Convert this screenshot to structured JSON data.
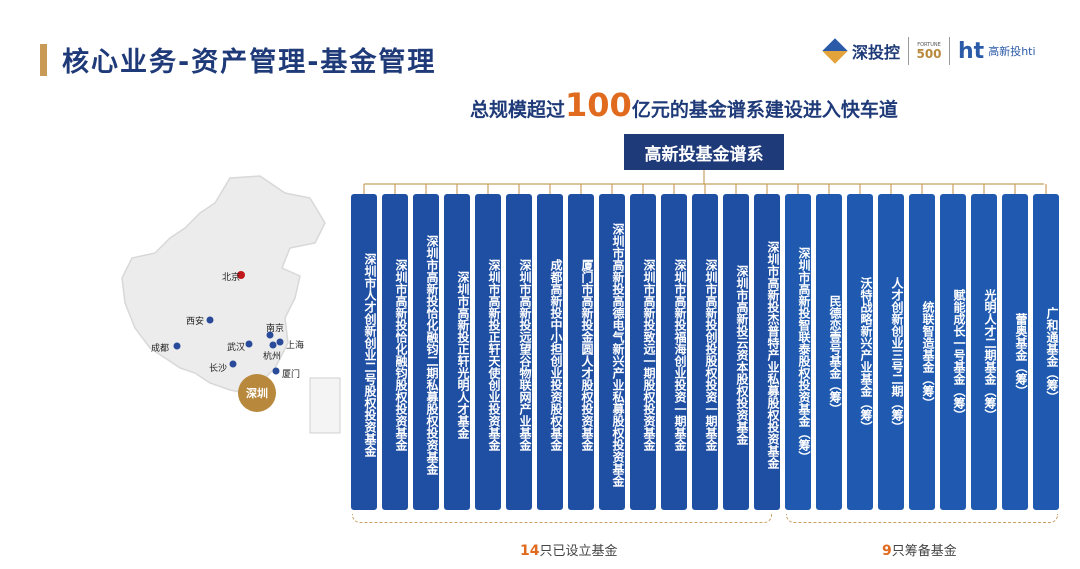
{
  "header": {
    "title": "核心业务-资产管理-基金管理",
    "logo_name": "深投控",
    "logo_500_small": "FORTUNE",
    "logo_500_big": "500",
    "logo_ht_mark": "ht",
    "logo_ht_name": "高新投hti",
    "logo_icon": "cube-logo-icon",
    "accent_color": "#c89a55",
    "brand_color": "#1f3a78"
  },
  "subtitle": {
    "prefix": "总规模超过",
    "number": "100",
    "suffix": "亿元的基金谱系建设进入快车道",
    "highlight_color": "#e06a1e"
  },
  "tree_header": "高新投基金谱系",
  "map": {
    "cities": [
      {
        "name": "北京",
        "highlight": true
      },
      {
        "name": "西安",
        "highlight": false
      },
      {
        "name": "成都",
        "highlight": false
      },
      {
        "name": "武汉",
        "highlight": false
      },
      {
        "name": "南京",
        "highlight": false
      },
      {
        "name": "上海",
        "highlight": false
      },
      {
        "name": "杭州",
        "highlight": false
      },
      {
        "name": "长沙",
        "highlight": false
      },
      {
        "name": "厦门",
        "highlight": false
      },
      {
        "name": "深圳",
        "highlight": true
      }
    ]
  },
  "funds": [
    {
      "name": "深圳市人才创新创业二号股权投资基金",
      "status": "established"
    },
    {
      "name": "深圳市高新投恰化融钧股权投资基金",
      "status": "established"
    },
    {
      "name": "深圳市高新投恰化融钧二期私募股权投资基金",
      "status": "established"
    },
    {
      "name": "深圳市高新投正轩光明人才基金",
      "status": "established"
    },
    {
      "name": "深圳市高新投正轩天使创业投资基金",
      "status": "established"
    },
    {
      "name": "深圳市高新投远望谷物联网产业基金",
      "status": "established"
    },
    {
      "name": "成都高新投中小担创业投资股权基金",
      "status": "established"
    },
    {
      "name": "厦门市高新投金圆人才股权投资基金",
      "status": "established"
    },
    {
      "name": "深圳市高新投高德电气新兴产业私募股权投资基金",
      "status": "established"
    },
    {
      "name": "深圳市高新投致远一期股权投资基金",
      "status": "established"
    },
    {
      "name": "深圳市高新投福海创业投资一期基金",
      "status": "established"
    },
    {
      "name": "深圳市高新投创投股权投资一期基金",
      "status": "established"
    },
    {
      "name": "深圳市高新投云资本股权投资基金",
      "status": "established"
    },
    {
      "name": "深圳市高新投杰普特产业私募股权投资基金",
      "status": "established"
    },
    {
      "name": "深圳市高新投智联泰股权投资基金（筹）",
      "status": "preparing"
    },
    {
      "name": "民德恋壹号基金（筹）",
      "status": "preparing"
    },
    {
      "name": "沃特战略新兴产业基金（筹）",
      "status": "preparing"
    },
    {
      "name": "人才创新创业三号二期（筹）",
      "status": "preparing"
    },
    {
      "name": "统联智造基金（筹）",
      "status": "preparing"
    },
    {
      "name": "赋能成长一号基金（筹）",
      "status": "preparing"
    },
    {
      "name": "光明人才二期基金（筹）",
      "status": "preparing"
    },
    {
      "name": "蕾奥基金（筹）",
      "status": "preparing"
    },
    {
      "name": "广和通基金（筹）",
      "status": "preparing"
    }
  ],
  "brackets": {
    "established": {
      "count": "14",
      "text": "只已设立基金"
    },
    "preparing": {
      "count": "9",
      "text": "只筹备基金"
    }
  }
}
